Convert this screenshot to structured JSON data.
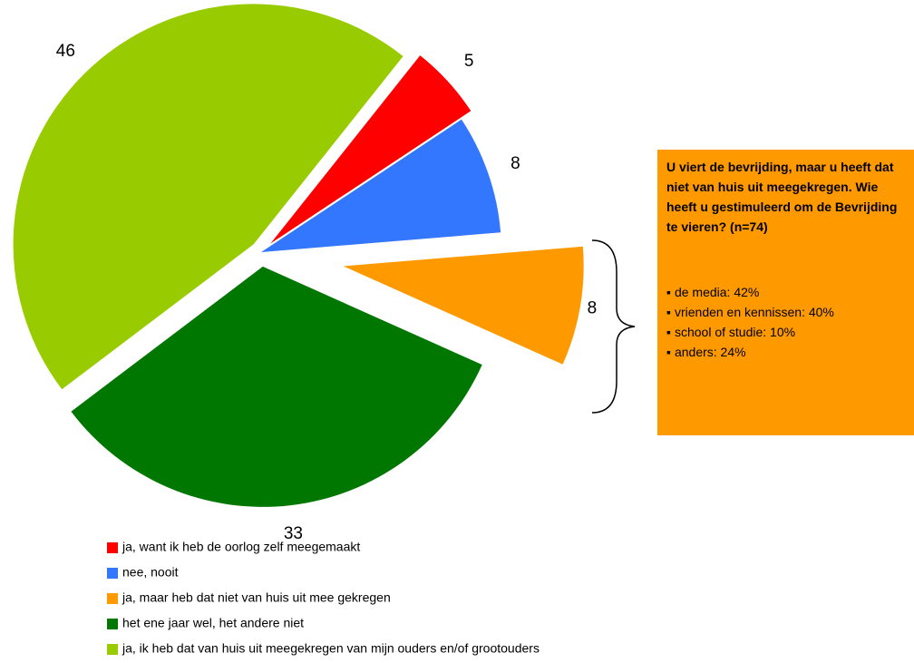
{
  "chart_data": {
    "type": "pie",
    "categories": [
      "ja, want ik heb de oorlog zelf meegemaakt",
      "nee, nooit",
      "ja, maar heb dat niet van huis uit mee gekregen",
      "het ene jaar wel, het andere niet",
      "ja, ik heb dat van huis uit meegekregen van mijn ouders en/of grootouders"
    ],
    "values": [
      5,
      8,
      8,
      33,
      46
    ],
    "colors": [
      "#ff0000",
      "#3377ff",
      "#ff9900",
      "#007700",
      "#99cc00"
    ],
    "annotation": {
      "title": "U viert de bevrijding, maar u heeft dat niet van huis uit meegekregen. Wie heeft u gestimuleerd om de Bevrijding te vieren? (n=74)",
      "items": [
        "de media: 42%",
        "vrienden en kennissen: 40%",
        "school of studie: 10%",
        "anders: 24%"
      ]
    }
  }
}
